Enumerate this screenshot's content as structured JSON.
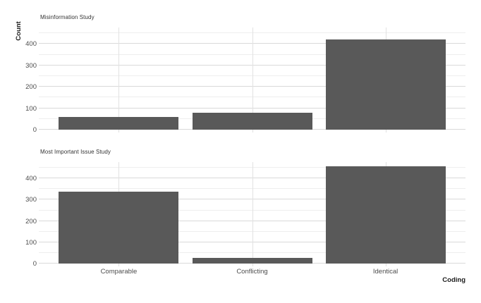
{
  "figure": {
    "y_axis_title": "Count",
    "x_axis_title": "Coding"
  },
  "chart_data": {
    "type": "bar",
    "faceted": true,
    "facet_layout": "vertical-stacked",
    "categories": [
      "Comparable",
      "Conflicting",
      "Identical"
    ],
    "series": [
      {
        "name": "Misinformation Study",
        "values": [
          60,
          80,
          420
        ]
      },
      {
        "name": "Most Important Issue Study",
        "values": [
          337,
          25,
          458
        ]
      }
    ],
    "title": "",
    "xlabel": "Coding",
    "ylabel": "Count",
    "ylim": [
      0,
      477
    ],
    "yticks_major": [
      0,
      100,
      200,
      300,
      400
    ],
    "yticks_minor": [
      50,
      150,
      250,
      350,
      450
    ],
    "grid": "major-and-minor-horizontal, major-vertical-at-category-centers",
    "legend": false,
    "bar_color": "#595959",
    "major_grid_color": "#d9d9d9",
    "minor_grid_color": "#eeeeee",
    "background_color": "#ffffff",
    "text_color": "#4d4d4d"
  }
}
